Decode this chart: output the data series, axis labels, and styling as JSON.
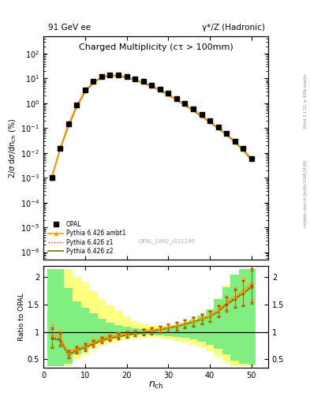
{
  "title": "Charged Multiplicity",
  "title_sub": "(cτ > 100mm)",
  "top_left_label": "91 GeV ee",
  "top_right_label": "γ*/Z (Hadronic)",
  "ylabel_main": "2/σ dσ/dn_{ch} (%)",
  "ylabel_ratio": "Ratio to OPAL",
  "xlabel": "n_{ch}",
  "watermark": "OPAL_1992_I321190",
  "right_label": "mcplots.cern.ch [arXiv:1306.3436]",
  "right_label2": "Rivet 3.1.10, ≥ 400k events",
  "opal_x": [
    2,
    4,
    6,
    8,
    10,
    12,
    14,
    16,
    18,
    20,
    22,
    24,
    26,
    28,
    30,
    32,
    34,
    36,
    38,
    40,
    42,
    44,
    46,
    48,
    50
  ],
  "opal_y": [
    0.001,
    0.015,
    0.15,
    0.85,
    3.5,
    7.5,
    12,
    14,
    14,
    12,
    9.5,
    7.5,
    5.5,
    3.8,
    2.5,
    1.6,
    1.0,
    0.6,
    0.35,
    0.2,
    0.11,
    0.06,
    0.03,
    0.015,
    0.006
  ],
  "opal_yerr": [
    0.0002,
    0.002,
    0.015,
    0.07,
    0.3,
    0.5,
    0.6,
    0.7,
    0.7,
    0.6,
    0.5,
    0.4,
    0.3,
    0.2,
    0.15,
    0.1,
    0.06,
    0.04,
    0.025,
    0.015,
    0.008,
    0.005,
    0.003,
    0.002,
    0.001
  ],
  "ambt1_x": [
    2,
    4,
    6,
    8,
    10,
    12,
    14,
    16,
    18,
    20,
    22,
    24,
    26,
    28,
    30,
    32,
    34,
    36,
    38,
    40,
    42,
    44,
    46,
    48,
    50
  ],
  "ambt1_y": [
    0.001,
    0.015,
    0.14,
    0.8,
    3.2,
    7.2,
    11.5,
    13.5,
    13.5,
    11.5,
    9.0,
    7.0,
    5.0,
    3.5,
    2.3,
    1.45,
    0.9,
    0.55,
    0.32,
    0.185,
    0.105,
    0.058,
    0.029,
    0.014,
    0.006
  ],
  "z1_x": [
    2,
    4,
    6,
    8,
    10,
    12,
    14,
    16,
    18,
    20,
    22,
    24,
    26,
    28,
    30,
    32,
    34,
    36,
    38,
    40,
    42,
    44,
    46,
    48,
    50
  ],
  "z1_y": [
    0.001,
    0.015,
    0.13,
    0.75,
    3.0,
    7.0,
    11.2,
    13.3,
    13.3,
    11.3,
    8.9,
    6.9,
    4.95,
    3.4,
    2.25,
    1.42,
    0.88,
    0.53,
    0.31,
    0.18,
    0.1,
    0.056,
    0.028,
    0.013,
    0.0055
  ],
  "z2_x": [
    2,
    4,
    6,
    8,
    10,
    12,
    14,
    16,
    18,
    20,
    22,
    24,
    26,
    28,
    30,
    32,
    34,
    36,
    38,
    40,
    42,
    44,
    46,
    48,
    50
  ],
  "z2_y": [
    0.001,
    0.014,
    0.12,
    0.72,
    2.9,
    6.8,
    11.0,
    13.0,
    13.0,
    11.0,
    8.7,
    6.7,
    4.8,
    3.3,
    2.2,
    1.38,
    0.85,
    0.51,
    0.3,
    0.175,
    0.098,
    0.054,
    0.027,
    0.013,
    0.0053
  ],
  "color_ambt1": "#FFA500",
  "color_z1": "#CC3300",
  "color_z2": "#808000",
  "ratio_ambt1_y": [
    0.95,
    0.92,
    0.62,
    0.7,
    0.75,
    0.82,
    0.88,
    0.92,
    0.95,
    0.97,
    0.99,
    1.01,
    1.03,
    1.06,
    1.09,
    1.12,
    1.16,
    1.2,
    1.25,
    1.3,
    1.4,
    1.55,
    1.65,
    1.75,
    1.9
  ],
  "ratio_z1_y": [
    0.9,
    0.88,
    0.6,
    0.68,
    0.73,
    0.8,
    0.86,
    0.9,
    0.93,
    0.96,
    0.98,
    1.0,
    1.02,
    1.05,
    1.08,
    1.11,
    1.15,
    1.19,
    1.24,
    1.29,
    1.38,
    1.52,
    1.62,
    1.72,
    1.85
  ],
  "ratio_z2_y": [
    0.88,
    0.85,
    0.58,
    0.66,
    0.71,
    0.78,
    0.84,
    0.88,
    0.91,
    0.94,
    0.97,
    0.99,
    1.01,
    1.04,
    1.07,
    1.1,
    1.14,
    1.18,
    1.23,
    1.28,
    1.37,
    1.5,
    1.6,
    1.7,
    1.82
  ],
  "bin_edges": [
    1,
    3,
    5,
    7,
    9,
    11,
    13,
    15,
    17,
    19,
    21,
    23,
    25,
    27,
    29,
    31,
    33,
    35,
    37,
    39,
    41,
    43,
    45,
    47,
    49,
    51
  ],
  "yellow_low": [
    0.38,
    0.38,
    0.38,
    0.5,
    0.6,
    0.68,
    0.75,
    0.8,
    0.84,
    0.87,
    0.89,
    0.9,
    0.9,
    0.89,
    0.87,
    0.84,
    0.81,
    0.77,
    0.72,
    0.65,
    0.55,
    0.45,
    0.38,
    0.38,
    0.38
  ],
  "yellow_high": [
    2.15,
    2.15,
    2.15,
    2.0,
    1.9,
    1.75,
    1.6,
    1.48,
    1.38,
    1.28,
    1.2,
    1.15,
    1.12,
    1.11,
    1.11,
    1.12,
    1.15,
    1.2,
    1.28,
    1.4,
    1.62,
    1.85,
    2.05,
    2.15,
    2.15
  ],
  "green_low": [
    0.38,
    0.38,
    0.42,
    0.6,
    0.7,
    0.78,
    0.84,
    0.88,
    0.91,
    0.93,
    0.94,
    0.95,
    0.95,
    0.94,
    0.93,
    0.91,
    0.89,
    0.86,
    0.82,
    0.77,
    0.7,
    0.6,
    0.48,
    0.42,
    0.4
  ],
  "green_high": [
    2.15,
    2.15,
    1.8,
    1.55,
    1.44,
    1.34,
    1.24,
    1.17,
    1.12,
    1.09,
    1.07,
    1.06,
    1.06,
    1.07,
    1.09,
    1.12,
    1.16,
    1.22,
    1.3,
    1.42,
    1.6,
    1.82,
    2.05,
    2.15,
    2.15
  ],
  "xlim": [
    0,
    54
  ],
  "ylim_main": [
    5e-07,
    500
  ],
  "ylim_ratio": [
    0.35,
    2.2
  ]
}
